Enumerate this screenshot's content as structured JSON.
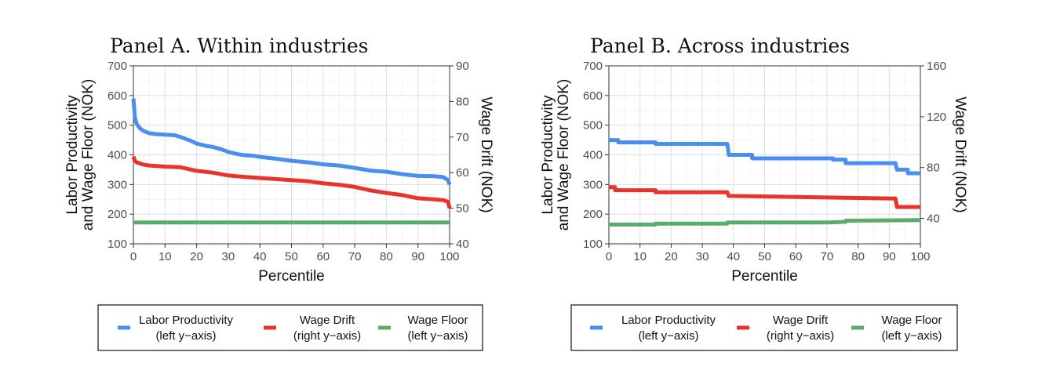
{
  "colors": {
    "productivity": "#4a8fef",
    "drift": "#e8342b",
    "floor": "#5aab6e"
  },
  "chart_data": [
    {
      "type": "line",
      "title": "Panel A. Within industries",
      "xlabel": "Percentile",
      "ylabel_left_line1": "Labor Productivity",
      "ylabel_left_line2": "and Wage Floor (NOK)",
      "ylabel_right": "Wage Drift (NOK)",
      "xlim": [
        0,
        100
      ],
      "ylim_left": [
        100,
        700
      ],
      "ylim_right": [
        40,
        90
      ],
      "xticks": [
        0,
        10,
        20,
        30,
        40,
        50,
        60,
        70,
        80,
        90,
        100
      ],
      "yticks_left": [
        100,
        200,
        300,
        400,
        500,
        600,
        700
      ],
      "yticks_right": [
        40,
        50,
        60,
        70,
        80,
        90
      ],
      "grid": true,
      "legend_position": "bottom",
      "series": [
        {
          "name": "Labor Productivity",
          "axis": "left",
          "color_key": "productivity",
          "x": [
            0,
            0.5,
            1,
            2,
            3,
            4,
            5,
            7,
            10,
            13,
            15,
            18,
            20,
            23,
            25,
            28,
            30,
            33,
            35,
            38,
            40,
            45,
            50,
            55,
            60,
            65,
            70,
            75,
            80,
            85,
            90,
            95,
            98,
            99.5,
            100
          ],
          "values": [
            590,
            525,
            505,
            490,
            482,
            477,
            473,
            470,
            468,
            466,
            460,
            448,
            438,
            430,
            427,
            418,
            410,
            402,
            399,
            397,
            393,
            387,
            380,
            375,
            368,
            364,
            356,
            347,
            343,
            335,
            329,
            328,
            325,
            315,
            300
          ]
        },
        {
          "name": "Wage Drift",
          "axis": "right",
          "color_key": "drift",
          "x": [
            0,
            0.5,
            1,
            2,
            3,
            5,
            7,
            10,
            15,
            20,
            25,
            30,
            35,
            40,
            45,
            50,
            55,
            60,
            65,
            70,
            75,
            80,
            85,
            90,
            95,
            98,
            99.5,
            100
          ],
          "values": [
            64.5,
            63.3,
            62.9,
            62.6,
            62.3,
            62.0,
            61.9,
            61.7,
            61.5,
            60.5,
            60.0,
            59.2,
            58.8,
            58.5,
            58.2,
            57.9,
            57.6,
            57.0,
            56.6,
            56.0,
            55.0,
            54.3,
            53.7,
            52.8,
            52.5,
            52.3,
            51.8,
            50.0
          ]
        },
        {
          "name": "Wage Floor",
          "axis": "left",
          "color_key": "floor",
          "x": [
            0,
            100
          ],
          "values": [
            172,
            172
          ]
        }
      ],
      "legend": [
        {
          "line1": "Labor Productivity",
          "line2": "(left y−axis)",
          "color_key": "productivity"
        },
        {
          "line1": "Wage Drift",
          "line2": "(right y−axis)",
          "color_key": "drift"
        },
        {
          "line1": "Wage Floor",
          "line2": "(left y−axis)",
          "color_key": "floor"
        }
      ]
    },
    {
      "type": "line",
      "title": "Panel B. Across industries",
      "xlabel": "Percentile",
      "ylabel_left_line1": "Labor Productivity",
      "ylabel_left_line2": "and Wage Floor (NOK)",
      "ylabel_right": "Wage Drift (NOK)",
      "xlim": [
        0,
        100
      ],
      "ylim_left": [
        100,
        700
      ],
      "ylim_right": [
        20,
        160
      ],
      "xticks": [
        0,
        10,
        20,
        30,
        40,
        50,
        60,
        70,
        80,
        90,
        100
      ],
      "yticks_left": [
        100,
        200,
        300,
        400,
        500,
        600,
        700
      ],
      "yticks_right": [
        40,
        80,
        120,
        160
      ],
      "grid": true,
      "legend_position": "bottom",
      "series": [
        {
          "name": "Labor Productivity",
          "axis": "left",
          "color_key": "productivity",
          "x": [
            0,
            3,
            3,
            15,
            15,
            38,
            38.5,
            46,
            46,
            72,
            72,
            76,
            76,
            92,
            92.5,
            96,
            96,
            100
          ],
          "values": [
            450,
            450,
            442,
            442,
            437,
            437,
            400,
            400,
            388,
            388,
            384,
            384,
            372,
            372,
            350,
            350,
            338,
            338
          ]
        },
        {
          "name": "Wage Drift",
          "axis": "right",
          "color_key": "drift",
          "x": [
            0,
            2,
            2,
            15,
            15,
            38,
            38.5,
            92,
            92.5,
            100
          ],
          "values": [
            64.5,
            64.5,
            62.2,
            62.2,
            60.5,
            60.5,
            57.7,
            55.6,
            49.0,
            49.0
          ]
        },
        {
          "name": "Wage Floor",
          "axis": "left",
          "color_key": "floor",
          "x": [
            0,
            15,
            15,
            38,
            38,
            70,
            76,
            76,
            100
          ],
          "values": [
            165,
            165,
            168,
            168,
            172,
            172,
            174,
            178,
            180
          ]
        }
      ],
      "legend": [
        {
          "line1": "Labor Productivity",
          "line2": "(left y−axis)",
          "color_key": "productivity"
        },
        {
          "line1": "Wage Drift",
          "line2": "(right y−axis)",
          "color_key": "drift"
        },
        {
          "line1": "Wage Floor",
          "line2": "(left y−axis)",
          "color_key": "floor"
        }
      ]
    }
  ]
}
